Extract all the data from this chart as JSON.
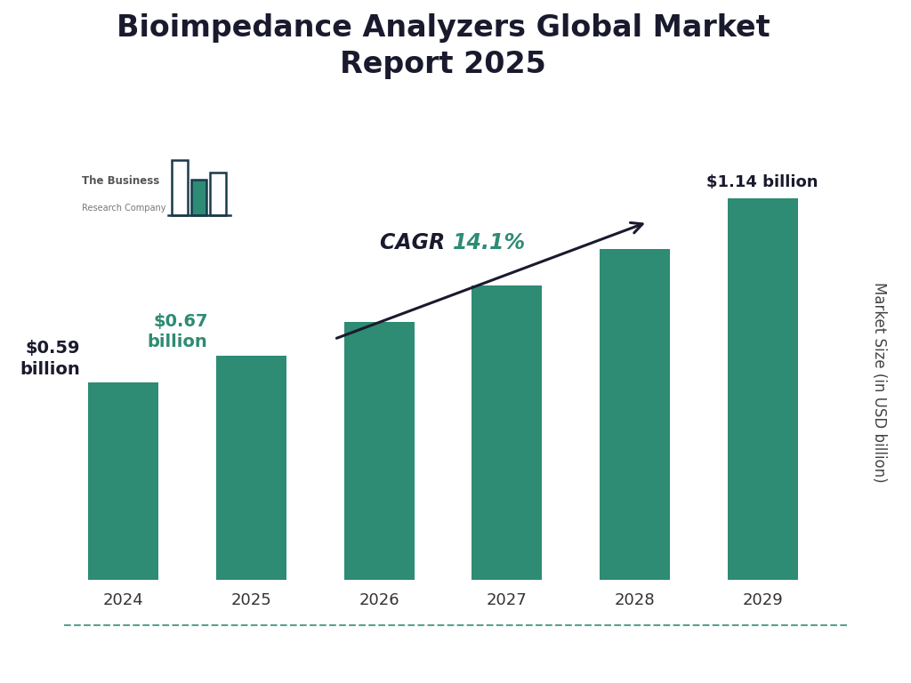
{
  "title": "Bioimpedance Analyzers Global Market\nReport 2025",
  "years": [
    "2024",
    "2025",
    "2026",
    "2027",
    "2028",
    "2029"
  ],
  "values": [
    0.59,
    0.67,
    0.77,
    0.88,
    0.99,
    1.14
  ],
  "bar_color": "#2e8b74",
  "bar_labels_left": [
    "$0.59\nbillion",
    "$0.67\nbillion"
  ],
  "bar_label_left_colors": [
    "#1a1a2e",
    "#2e8b74"
  ],
  "bar_label_top": "$1.14 billion",
  "cagr_word": "CAGR ",
  "cagr_number": "14.1%",
  "cagr_word_color": "#1a1a2e",
  "cagr_number_color": "#2e8b74",
  "ylabel": "Market Size (in USD billion)",
  "title_color": "#1a1a2e",
  "title_fontsize": 24,
  "ylabel_fontsize": 12,
  "tick_fontsize": 13,
  "background_color": "#ffffff",
  "arrow_color": "#1a1a2e",
  "logo_bar_outline_color": "#1a3a4a",
  "logo_bar_fill_color": "#2e8b74",
  "logo_text_color": "#555555",
  "bottom_line_color": "#2e8b74",
  "ylim": [
    0,
    1.45
  ]
}
